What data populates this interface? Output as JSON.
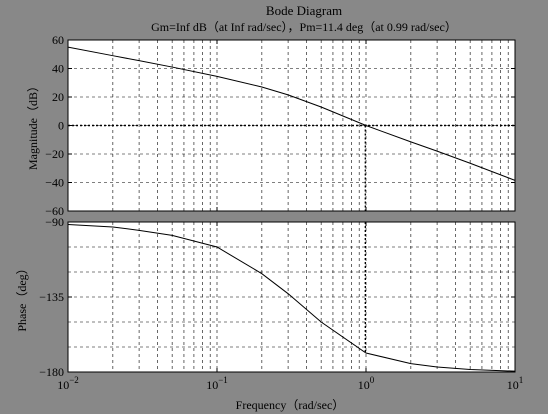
{
  "figure": {
    "background": "#888888",
    "axes_background": "#ffffff",
    "line_color": "#000000",
    "title": "Bode Diagram",
    "subtitle": "Gm=Inf dB（at Inf rad/sec），Pm=11.4 deg（at 0.99 rad/sec）",
    "xlabel": "Frequency（rad/sec）"
  },
  "chart_data": [
    {
      "type": "line",
      "title": "Bode Diagram",
      "subtitle": "Gm=Inf dB（at Inf rad/sec），Pm=11.4 deg（at 0.99 rad/sec）",
      "xlabel": "Frequency（rad/sec）",
      "ylabel": "Magnitude（dB）",
      "xscale": "log",
      "xlim": [
        0.01,
        10
      ],
      "ylim": [
        -60,
        60
      ],
      "yticks": [
        60,
        40,
        20,
        0,
        -20,
        -40,
        -60
      ],
      "ytick_labels": [
        "60",
        "40",
        "20",
        "0",
        "−20",
        "−40",
        "−60"
      ],
      "grid": true,
      "x": [
        0.01,
        0.02,
        0.03,
        0.05,
        0.1,
        0.2,
        0.3,
        0.5,
        1,
        2,
        3,
        5,
        10
      ],
      "series": [
        {
          "values": [
            55,
            49,
            45.5,
            41,
            34.5,
            27,
            21.5,
            13,
            0,
            -11.5,
            -18,
            -26.5,
            -38.5
          ]
        }
      ],
      "annotations": [
        {
          "type": "vline",
          "x": 0.99,
          "from": 0,
          "to": -60,
          "style": "dotted"
        },
        {
          "type": "hline",
          "y": 0,
          "style": "dotted"
        }
      ]
    },
    {
      "type": "line",
      "ylabel": "Phase（deg）",
      "xscale": "log",
      "xlim": [
        0.01,
        10
      ],
      "ylim": [
        -180,
        -90
      ],
      "yticks": [
        -90,
        -135,
        -180
      ],
      "ytick_labels": [
        "−90",
        "−135",
        "−180"
      ],
      "xtick_labels": [
        "10",
        "10",
        "10",
        "10"
      ],
      "xtick_exponents": [
        "−2",
        "−1",
        "0",
        "1"
      ],
      "grid": true,
      "x": [
        0.01,
        0.02,
        0.03,
        0.05,
        0.1,
        0.2,
        0.3,
        0.5,
        1,
        2,
        3,
        5,
        10
      ],
      "series": [
        {
          "values": [
            -91.5,
            -93,
            -95,
            -98,
            -105,
            -121,
            -133,
            -150,
            -168.6,
            -175,
            -177,
            -178.5,
            -179.5
          ]
        }
      ],
      "annotations": [
        {
          "type": "vline",
          "x": 0.99,
          "from": -90,
          "to": -168.6,
          "style": "dotted"
        }
      ]
    }
  ]
}
